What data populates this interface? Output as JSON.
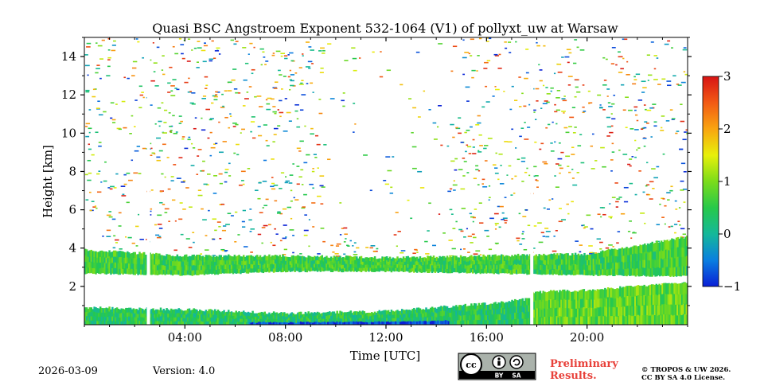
{
  "chart_data": {
    "type": "heatmap",
    "title": "Quasi BSC Angstroem Exponent 532-1064 (V1) of pollyxt_uw at Warsaw",
    "xlabel": "Time [UTC]",
    "ylabel": "Height [km]",
    "xlim_hours": [
      0,
      24
    ],
    "ylim_km": [
      0,
      15
    ],
    "x_ticks": [
      {
        "value": 4,
        "label": "04:00"
      },
      {
        "value": 8,
        "label": "08:00"
      },
      {
        "value": 12,
        "label": "12:00"
      },
      {
        "value": 16,
        "label": "16:00"
      },
      {
        "value": 20,
        "label": "20:00"
      }
    ],
    "y_ticks": [
      {
        "value": 2,
        "label": "2"
      },
      {
        "value": 4,
        "label": "4"
      },
      {
        "value": 6,
        "label": "6"
      },
      {
        "value": 8,
        "label": "8"
      },
      {
        "value": 10,
        "label": "10"
      },
      {
        "value": 12,
        "label": "12"
      },
      {
        "value": 14,
        "label": "14"
      }
    ],
    "colorbar": {
      "range": [
        -1,
        3
      ],
      "ticks": [
        {
          "value": -1,
          "label": "−1"
        },
        {
          "value": 0,
          "label": "0"
        },
        {
          "value": 1,
          "label": "1"
        },
        {
          "value": 2,
          "label": "2"
        },
        {
          "value": 3,
          "label": "3"
        }
      ],
      "colormap": [
        "#0a1fd6",
        "#0a7fe0",
        "#14b89a",
        "#27c94a",
        "#7bdc1a",
        "#e8f00a",
        "#f9a510",
        "#f25a14",
        "#d81414"
      ]
    },
    "data_gaps_hours": [
      2.55,
      17.8
    ],
    "layers": [
      {
        "name": "upper aerosol band",
        "start_h": 0,
        "end_h": 24,
        "bottom_km": [
          2.7,
          2.6,
          2.8,
          2.8,
          2.7,
          2.6,
          2.55
        ],
        "top_km": [
          3.9,
          3.6,
          3.6,
          3.5,
          3.6,
          3.7,
          4.6
        ],
        "value": 0.6
      },
      {
        "name": "boundary layer lower",
        "start_h": 0,
        "end_h": 24,
        "bottom_km": 0,
        "top_km": [
          0.9,
          0.8,
          0.6,
          0.7,
          1.1,
          1.7,
          2.2
        ],
        "value": 0.4
      },
      {
        "name": "evening residual layer",
        "start_h": 17.8,
        "end_h": 24,
        "bottom_km": 0,
        "top_km": [
          1.7,
          1.8,
          2.0,
          2.2
        ],
        "value": 0.8
      }
    ],
    "note": "Sparse noisy pixels scattered from 4 to 15 km, values between -1 and 3."
  },
  "footer": {
    "date": "2026-03-09",
    "version": "Version: 4.0",
    "license_badge": {
      "cc": "cc",
      "by": "BY",
      "sa": "SA"
    },
    "preliminary_line1": "Preliminary",
    "preliminary_line2": "Results.",
    "copyright_line1": "© TROPOS & UW 2026.",
    "copyright_line2": "CC BY SA 4.0 License."
  }
}
